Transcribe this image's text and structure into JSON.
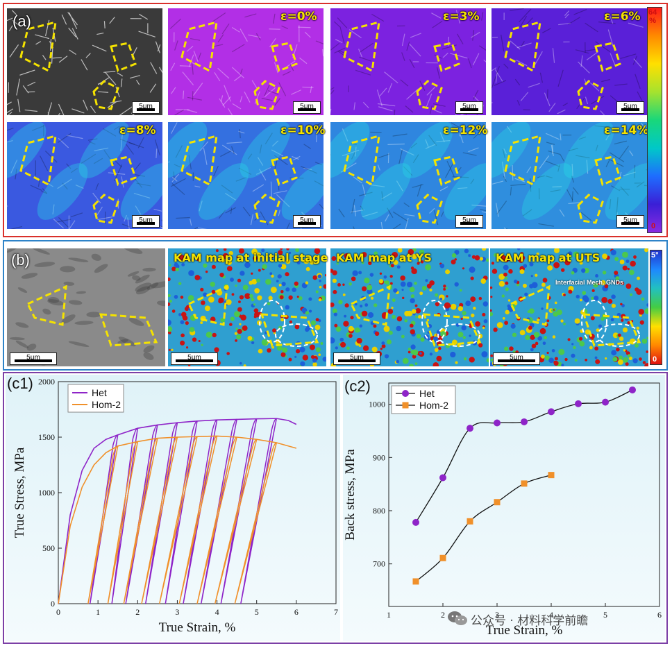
{
  "panel_a": {
    "tag": "(a)",
    "strain_labels": [
      "",
      "ε=0%",
      "ε=3%",
      "ε=6%",
      "ε=8%",
      "ε=10%",
      "ε=12%",
      "ε=14%"
    ],
    "scale_label": "5μm",
    "colorbar": {
      "max_label": "64\n%",
      "min_label": "0",
      "colors": [
        "#ff1a1a",
        "#ff8a00",
        "#ffe000",
        "#a6e22e",
        "#19d77a",
        "#00c8c8",
        "#1e6dff",
        "#3b1fd6",
        "#8a2be2"
      ]
    },
    "tile_fills": [
      "#3a3a3a",
      "#b22fe6",
      "#7c22e0",
      "#5a20d8",
      "#3a59e0",
      "#3470e0",
      "#2f86df",
      "#2f8ede"
    ]
  },
  "panel_b": {
    "tag": "(b)",
    "titles": [
      "",
      "KAM map at initial stage",
      "KAM map at YS",
      "KAM map at UTS"
    ],
    "annotation": "Interfacial Mech. GNDs",
    "scale_label": "5μm",
    "colorbar": {
      "max_label": "5°",
      "min_label": "0",
      "colors": [
        "#2233cc",
        "#1e88ff",
        "#22c0c0",
        "#44cc44",
        "#ffe000",
        "#ff8800",
        "#e01010"
      ]
    }
  },
  "chart_c1": {
    "tag": "(c1)",
    "chart_data": {
      "type": "line",
      "xlabel": "True Strain, %",
      "ylabel": "True Stress, MPa",
      "xlim": [
        0,
        7
      ],
      "ylim": [
        0,
        2000
      ],
      "xticks": [
        0,
        1,
        2,
        3,
        4,
        5,
        6,
        7
      ],
      "yticks": [
        0,
        500,
        1000,
        1500,
        2000
      ],
      "legend_position": "top-left",
      "series": [
        {
          "name": "Het",
          "color": "#8e24c8",
          "envelope": [
            [
              0,
              0
            ],
            [
              0.3,
              800
            ],
            [
              0.6,
              1200
            ],
            [
              0.9,
              1400
            ],
            [
              1.2,
              1480
            ],
            [
              1.5,
              1520
            ],
            [
              2.0,
              1580
            ],
            [
              2.5,
              1610
            ],
            [
              3.0,
              1630
            ],
            [
              3.5,
              1645
            ],
            [
              4.0,
              1655
            ],
            [
              4.5,
              1660
            ],
            [
              5.0,
              1665
            ],
            [
              5.5,
              1668
            ],
            [
              5.8,
              1650
            ],
            [
              6.0,
              1615
            ]
          ],
          "unload_strains": [
            1.5,
            2.0,
            2.5,
            3.0,
            3.5,
            4.0,
            4.5,
            5.0,
            5.5
          ],
          "reload_start": [
            0.8,
            1.35,
            1.7,
            2.2,
            2.7,
            3.15,
            3.6,
            4.1,
            4.6
          ]
        },
        {
          "name": "Hom-2",
          "color": "#f0902a",
          "envelope": [
            [
              0,
              0
            ],
            [
              0.3,
              700
            ],
            [
              0.6,
              1050
            ],
            [
              0.9,
              1250
            ],
            [
              1.2,
              1360
            ],
            [
              1.5,
              1420
            ],
            [
              2.0,
              1460
            ],
            [
              2.5,
              1490
            ],
            [
              3.0,
              1500
            ],
            [
              3.5,
              1505
            ],
            [
              4.0,
              1510
            ],
            [
              4.5,
              1500
            ],
            [
              5.0,
              1480
            ],
            [
              5.5,
              1450
            ],
            [
              6.0,
              1400
            ]
          ],
          "unload_strains": [
            1.5,
            2.0,
            2.5,
            3.0,
            3.5,
            4.0,
            4.5,
            5.0,
            5.5
          ],
          "reload_start": [
            0.75,
            1.25,
            1.65,
            2.1,
            2.55,
            3.05,
            3.5,
            3.95,
            4.45
          ]
        }
      ]
    }
  },
  "chart_c2": {
    "tag": "(c2)",
    "chart_data": {
      "type": "line",
      "xlabel": "True Strain, %",
      "ylabel": "Back stress, MPa",
      "xlim": [
        1,
        6
      ],
      "ylim": [
        620,
        1040
      ],
      "xticks": [
        1,
        2,
        3,
        4,
        5,
        6
      ],
      "yticks": [
        700,
        800,
        900,
        1000
      ],
      "legend_position": "top-left",
      "series": [
        {
          "name": "Het",
          "color": "#8e24c8",
          "marker": "circle",
          "x": [
            1.5,
            2.0,
            2.5,
            3.0,
            3.5,
            4.0,
            4.5,
            5.0,
            5.5
          ],
          "y": [
            778,
            862,
            955,
            965,
            967,
            986,
            1001,
            1004,
            1027
          ]
        },
        {
          "name": "Hom-2",
          "color": "#f0902a",
          "marker": "square",
          "x": [
            1.5,
            2.0,
            2.5,
            3.0,
            3.5,
            4.0
          ],
          "y": [
            667,
            711,
            780,
            816,
            851,
            867
          ]
        }
      ]
    }
  },
  "watermark": "公众号 · 材料科学前瞻"
}
